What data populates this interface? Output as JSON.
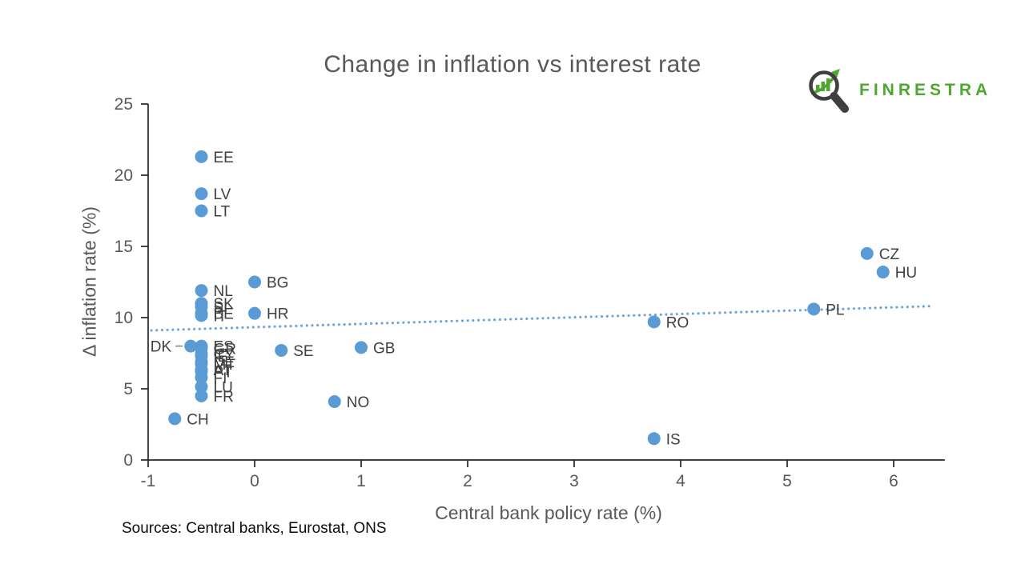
{
  "title": {
    "text": "Change in inflation vs interest rate",
    "color": "#595959"
  },
  "logo": {
    "text": "FINRESTRA",
    "text_color": "#4EA72E",
    "glass_color": "#3F3F3F",
    "chart_color": "#4EA72E"
  },
  "source_note": "Sources: Central banks, Eurostat, ONS",
  "chart_data": {
    "type": "scatter",
    "title": "Change in inflation vs interest rate",
    "xlabel": "Central bank policy rate (%)",
    "ylabel": "Δ inflation rate (%)",
    "xlim": [
      -1,
      6.48
    ],
    "ylim": [
      0,
      25
    ],
    "x_ticks": [
      "-1",
      "0",
      "1",
      "2",
      "3",
      "4",
      "5",
      "6"
    ],
    "y_ticks": [
      "0",
      "5",
      "10",
      "15",
      "20",
      "25"
    ],
    "grid": false,
    "legend": "none",
    "marker_color": "#5B9BD5",
    "label_color": "#404040",
    "axis_color": "#262626",
    "tick_label_color": "#595959",
    "trend_color": "#5B9BD5",
    "points": [
      {
        "label": "EE",
        "x": -0.5,
        "y": 21.3
      },
      {
        "label": "LV",
        "x": -0.5,
        "y": 18.7
      },
      {
        "label": "LT",
        "x": -0.5,
        "y": 17.5
      },
      {
        "label": "NL",
        "x": -0.5,
        "y": 11.9
      },
      {
        "label": "SK",
        "x": -0.5,
        "y": 11.0
      },
      {
        "label": "SI",
        "x": -0.5,
        "y": 10.75
      },
      {
        "label": "BE",
        "x": -0.5,
        "y": 10.3
      },
      {
        "label": "IT",
        "x": -0.5,
        "y": 10.15
      },
      {
        "label": "ES",
        "x": -0.5,
        "y": 8.0
      },
      {
        "label": "GR",
        "x": -0.5,
        "y": 7.85
      },
      {
        "label": "CY",
        "x": -0.5,
        "y": 7.45
      },
      {
        "label": "IE",
        "x": -0.5,
        "y": 7.3
      },
      {
        "label": "DE",
        "x": -0.5,
        "y": 6.9
      },
      {
        "label": "MT",
        "x": -0.5,
        "y": 6.75
      },
      {
        "label": "AT",
        "x": -0.5,
        "y": 6.35
      },
      {
        "label": "PT",
        "x": -0.5,
        "y": 6.2
      },
      {
        "label": "FI",
        "x": -0.5,
        "y": 5.8
      },
      {
        "label": "LU",
        "x": -0.5,
        "y": 5.15
      },
      {
        "label": "FR",
        "x": -0.5,
        "y": 4.5
      },
      {
        "label": "DK",
        "x": -0.6,
        "y": 8.0,
        "label_side": "left"
      },
      {
        "label": "CH",
        "x": -0.75,
        "y": 2.9
      },
      {
        "label": "BG",
        "x": 0.0,
        "y": 12.5
      },
      {
        "label": "HR",
        "x": 0.0,
        "y": 10.3
      },
      {
        "label": "SE",
        "x": 0.25,
        "y": 7.7
      },
      {
        "label": "NO",
        "x": 0.75,
        "y": 4.1
      },
      {
        "label": "GB",
        "x": 1.0,
        "y": 7.9
      },
      {
        "label": "RO",
        "x": 3.75,
        "y": 9.7
      },
      {
        "label": "IS",
        "x": 3.75,
        "y": 1.5
      },
      {
        "label": "PL",
        "x": 5.25,
        "y": 10.6
      },
      {
        "label": "CZ",
        "x": 5.75,
        "y": 14.5
      },
      {
        "label": "HU",
        "x": 5.9,
        "y": 13.2
      }
    ],
    "trendline": {
      "x1": -0.97,
      "y1": 9.1,
      "x2": 6.35,
      "y2": 10.8,
      "style": "dotted"
    }
  }
}
